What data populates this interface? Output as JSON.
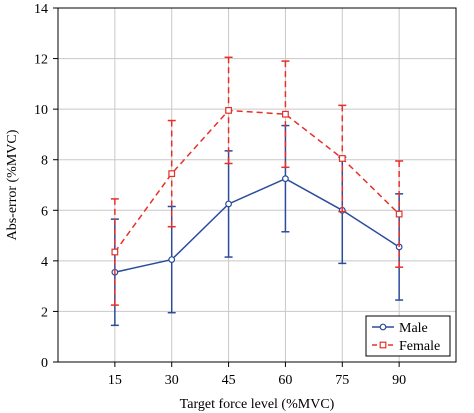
{
  "chart_data": {
    "type": "line",
    "title": "",
    "xlabel": "Target force level (%MVC)",
    "ylabel": "Abs-error (%MVC)",
    "categories": [
      "15",
      "30",
      "45",
      "60",
      "75",
      "90"
    ],
    "ylim": [
      0,
      14
    ],
    "yticks": [
      "0",
      "2",
      "4",
      "6",
      "8",
      "10",
      "12",
      "14"
    ],
    "grid": true,
    "legend_position": "bottom-right",
    "series": [
      {
        "name": "Male",
        "color": "#2b4c9b",
        "line_style": "solid",
        "marker": "circle",
        "values": [
          3.55,
          4.05,
          6.25,
          7.25,
          6.0,
          4.55
        ],
        "error": [
          2.1,
          2.1,
          2.1,
          2.1,
          2.1,
          2.1
        ]
      },
      {
        "name": "Female",
        "color": "#e8302a",
        "line_style": "dashed",
        "marker": "square",
        "values": [
          4.35,
          7.45,
          9.95,
          9.8,
          8.05,
          5.85
        ],
        "error": [
          2.1,
          2.1,
          2.1,
          2.1,
          2.1,
          2.1
        ]
      }
    ]
  }
}
